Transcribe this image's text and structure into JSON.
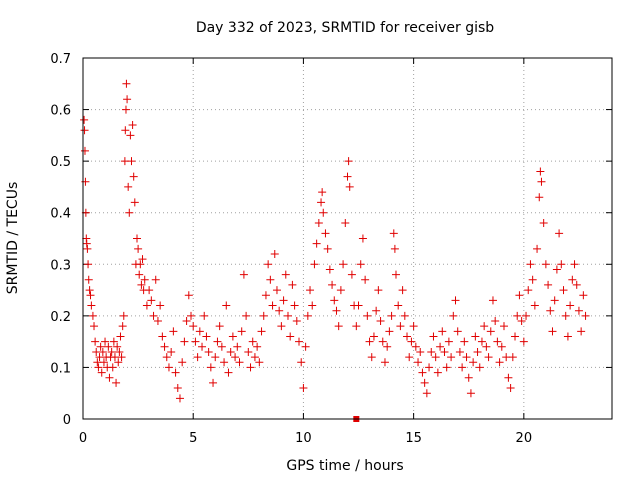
{
  "chart_data": {
    "type": "scatter",
    "title": "Day 332 of 2023, SRMTID for receiver gisb",
    "xlabel": "GPS time / hours",
    "ylabel": "SRMTID / TECUs",
    "xlim": [
      0,
      24
    ],
    "ylim": [
      0,
      0.7
    ],
    "xticks": [
      0,
      5,
      10,
      15,
      20
    ],
    "xtick_labels": [
      "0",
      "5",
      "10",
      "15",
      "20"
    ],
    "yticks": [
      0,
      0.1,
      0.2,
      0.3,
      0.4,
      0.5,
      0.6,
      0.7
    ],
    "ytick_labels": [
      "0",
      "0.1",
      "0.2",
      "0.3",
      "0.4",
      "0.5",
      "0.6",
      "0.7"
    ],
    "grid": true,
    "marker": "plus",
    "series": [
      {
        "name": "SRMTID",
        "color": "#e00000",
        "points": [
          [
            0.05,
            0.58
          ],
          [
            0.07,
            0.56
          ],
          [
            0.09,
            0.52
          ],
          [
            0.11,
            0.46
          ],
          [
            0.13,
            0.4
          ],
          [
            0.15,
            0.35
          ],
          [
            0.17,
            0.34
          ],
          [
            0.2,
            0.33
          ],
          [
            0.23,
            0.3
          ],
          [
            0.26,
            0.27
          ],
          [
            0.3,
            0.25
          ],
          [
            0.34,
            0.24
          ],
          [
            0.38,
            0.22
          ],
          [
            0.45,
            0.2
          ],
          [
            0.5,
            0.18
          ],
          [
            0.55,
            0.15
          ],
          [
            0.6,
            0.13
          ],
          [
            0.65,
            0.11
          ],
          [
            0.7,
            0.1
          ],
          [
            0.75,
            0.12
          ],
          [
            0.8,
            0.14
          ],
          [
            0.85,
            0.09
          ],
          [
            0.9,
            0.13
          ],
          [
            0.95,
            0.11
          ],
          [
            1.0,
            0.15
          ],
          [
            1.05,
            0.12
          ],
          [
            1.1,
            0.1
          ],
          [
            1.15,
            0.14
          ],
          [
            1.2,
            0.08
          ],
          [
            1.25,
            0.12
          ],
          [
            1.3,
            0.13
          ],
          [
            1.35,
            0.1
          ],
          [
            1.4,
            0.15
          ],
          [
            1.45,
            0.12
          ],
          [
            1.5,
            0.07
          ],
          [
            1.55,
            0.14
          ],
          [
            1.6,
            0.11
          ],
          [
            1.65,
            0.13
          ],
          [
            1.7,
            0.16
          ],
          [
            1.75,
            0.12
          ],
          [
            1.8,
            0.18
          ],
          [
            1.85,
            0.2
          ],
          [
            1.9,
            0.5
          ],
          [
            1.92,
            0.56
          ],
          [
            1.95,
            0.6
          ],
          [
            1.97,
            0.65
          ],
          [
            2.0,
            0.62
          ],
          [
            2.05,
            0.45
          ],
          [
            2.1,
            0.4
          ],
          [
            2.15,
            0.55
          ],
          [
            2.2,
            0.5
          ],
          [
            2.25,
            0.57
          ],
          [
            2.3,
            0.47
          ],
          [
            2.35,
            0.42
          ],
          [
            2.4,
            0.3
          ],
          [
            2.45,
            0.35
          ],
          [
            2.5,
            0.33
          ],
          [
            2.55,
            0.28
          ],
          [
            2.6,
            0.3
          ],
          [
            2.65,
            0.26
          ],
          [
            2.7,
            0.31
          ],
          [
            2.75,
            0.25
          ],
          [
            2.8,
            0.27
          ],
          [
            2.9,
            0.22
          ],
          [
            3.0,
            0.25
          ],
          [
            3.1,
            0.23
          ],
          [
            3.2,
            0.2
          ],
          [
            3.3,
            0.27
          ],
          [
            3.4,
            0.19
          ],
          [
            3.5,
            0.22
          ],
          [
            3.6,
            0.16
          ],
          [
            3.7,
            0.14
          ],
          [
            3.8,
            0.12
          ],
          [
            3.9,
            0.1
          ],
          [
            4.0,
            0.13
          ],
          [
            4.1,
            0.17
          ],
          [
            4.2,
            0.09
          ],
          [
            4.3,
            0.06
          ],
          [
            4.4,
            0.04
          ],
          [
            4.5,
            0.11
          ],
          [
            4.6,
            0.15
          ],
          [
            4.7,
            0.19
          ],
          [
            4.8,
            0.24
          ],
          [
            4.9,
            0.2
          ],
          [
            5.0,
            0.18
          ],
          [
            5.1,
            0.15
          ],
          [
            5.2,
            0.12
          ],
          [
            5.3,
            0.17
          ],
          [
            5.4,
            0.14
          ],
          [
            5.5,
            0.2
          ],
          [
            5.6,
            0.16
          ],
          [
            5.7,
            0.13
          ],
          [
            5.8,
            0.1
          ],
          [
            5.9,
            0.07
          ],
          [
            6.0,
            0.12
          ],
          [
            6.1,
            0.15
          ],
          [
            6.2,
            0.18
          ],
          [
            6.3,
            0.14
          ],
          [
            6.4,
            0.11
          ],
          [
            6.5,
            0.22
          ],
          [
            6.6,
            0.09
          ],
          [
            6.7,
            0.13
          ],
          [
            6.8,
            0.16
          ],
          [
            6.9,
            0.12
          ],
          [
            7.0,
            0.14
          ],
          [
            7.1,
            0.11
          ],
          [
            7.2,
            0.17
          ],
          [
            7.3,
            0.28
          ],
          [
            7.4,
            0.2
          ],
          [
            7.5,
            0.13
          ],
          [
            7.6,
            0.1
          ],
          [
            7.7,
            0.15
          ],
          [
            7.8,
            0.12
          ],
          [
            7.9,
            0.14
          ],
          [
            8.0,
            0.11
          ],
          [
            8.1,
            0.17
          ],
          [
            8.2,
            0.2
          ],
          [
            8.3,
            0.24
          ],
          [
            8.4,
            0.3
          ],
          [
            8.5,
            0.27
          ],
          [
            8.6,
            0.22
          ],
          [
            8.7,
            0.32
          ],
          [
            8.8,
            0.25
          ],
          [
            8.9,
            0.21
          ],
          [
            9.0,
            0.18
          ],
          [
            9.1,
            0.23
          ],
          [
            9.2,
            0.28
          ],
          [
            9.3,
            0.2
          ],
          [
            9.4,
            0.16
          ],
          [
            9.5,
            0.26
          ],
          [
            9.6,
            0.22
          ],
          [
            9.7,
            0.19
          ],
          [
            9.8,
            0.15
          ],
          [
            9.9,
            0.11
          ],
          [
            10.0,
            0.06
          ],
          [
            10.1,
            0.14
          ],
          [
            10.2,
            0.2
          ],
          [
            10.3,
            0.25
          ],
          [
            10.4,
            0.22
          ],
          [
            10.5,
            0.3
          ],
          [
            10.6,
            0.34
          ],
          [
            10.7,
            0.38
          ],
          [
            10.8,
            0.42
          ],
          [
            10.85,
            0.44
          ],
          [
            10.9,
            0.4
          ],
          [
            11.0,
            0.36
          ],
          [
            11.1,
            0.33
          ],
          [
            11.2,
            0.29
          ],
          [
            11.3,
            0.26
          ],
          [
            11.4,
            0.23
          ],
          [
            11.5,
            0.21
          ],
          [
            11.6,
            0.18
          ],
          [
            11.7,
            0.25
          ],
          [
            11.8,
            0.3
          ],
          [
            11.9,
            0.38
          ],
          [
            12.0,
            0.47
          ],
          [
            12.05,
            0.5
          ],
          [
            12.1,
            0.45
          ],
          [
            12.2,
            0.28
          ],
          [
            12.3,
            0.22
          ],
          [
            12.4,
            0.18
          ],
          [
            12.5,
            0.22
          ],
          [
            12.6,
            0.3
          ],
          [
            12.7,
            0.35
          ],
          [
            12.8,
            0.27
          ],
          [
            12.9,
            0.2
          ],
          [
            13.0,
            0.15
          ],
          [
            13.1,
            0.12
          ],
          [
            13.2,
            0.16
          ],
          [
            13.3,
            0.21
          ],
          [
            13.4,
            0.25
          ],
          [
            13.5,
            0.19
          ],
          [
            13.6,
            0.15
          ],
          [
            13.7,
            0.11
          ],
          [
            13.8,
            0.14
          ],
          [
            13.9,
            0.17
          ],
          [
            14.0,
            0.2
          ],
          [
            14.1,
            0.36
          ],
          [
            14.15,
            0.33
          ],
          [
            14.2,
            0.28
          ],
          [
            14.3,
            0.22
          ],
          [
            14.4,
            0.18
          ],
          [
            14.5,
            0.25
          ],
          [
            14.6,
            0.2
          ],
          [
            14.7,
            0.16
          ],
          [
            14.8,
            0.12
          ],
          [
            14.9,
            0.15
          ],
          [
            15.0,
            0.18
          ],
          [
            15.1,
            0.14
          ],
          [
            15.2,
            0.11
          ],
          [
            15.3,
            0.13
          ],
          [
            15.4,
            0.09
          ],
          [
            15.5,
            0.07
          ],
          [
            15.6,
            0.05
          ],
          [
            15.7,
            0.1
          ],
          [
            15.8,
            0.13
          ],
          [
            15.9,
            0.16
          ],
          [
            16.0,
            0.12
          ],
          [
            16.1,
            0.09
          ],
          [
            16.2,
            0.14
          ],
          [
            16.3,
            0.17
          ],
          [
            16.4,
            0.13
          ],
          [
            16.5,
            0.1
          ],
          [
            16.6,
            0.15
          ],
          [
            16.7,
            0.12
          ],
          [
            16.8,
            0.2
          ],
          [
            16.9,
            0.23
          ],
          [
            17.0,
            0.17
          ],
          [
            17.1,
            0.13
          ],
          [
            17.2,
            0.1
          ],
          [
            17.3,
            0.15
          ],
          [
            17.4,
            0.12
          ],
          [
            17.5,
            0.08
          ],
          [
            17.6,
            0.05
          ],
          [
            17.7,
            0.11
          ],
          [
            17.8,
            0.16
          ],
          [
            17.9,
            0.13
          ],
          [
            18.0,
            0.1
          ],
          [
            18.1,
            0.15
          ],
          [
            18.2,
            0.18
          ],
          [
            18.3,
            0.14
          ],
          [
            18.4,
            0.12
          ],
          [
            18.5,
            0.17
          ],
          [
            18.6,
            0.23
          ],
          [
            18.7,
            0.19
          ],
          [
            18.8,
            0.15
          ],
          [
            18.9,
            0.11
          ],
          [
            19.0,
            0.14
          ],
          [
            19.1,
            0.18
          ],
          [
            19.2,
            0.12
          ],
          [
            19.3,
            0.08
          ],
          [
            19.4,
            0.06
          ],
          [
            19.5,
            0.12
          ],
          [
            19.6,
            0.16
          ],
          [
            19.7,
            0.2
          ],
          [
            19.8,
            0.24
          ],
          [
            19.9,
            0.19
          ],
          [
            20.0,
            0.15
          ],
          [
            20.1,
            0.2
          ],
          [
            20.2,
            0.25
          ],
          [
            20.3,
            0.3
          ],
          [
            20.4,
            0.27
          ],
          [
            20.5,
            0.22
          ],
          [
            20.6,
            0.33
          ],
          [
            20.7,
            0.43
          ],
          [
            20.75,
            0.48
          ],
          [
            20.8,
            0.46
          ],
          [
            20.9,
            0.38
          ],
          [
            21.0,
            0.3
          ],
          [
            21.1,
            0.26
          ],
          [
            21.2,
            0.21
          ],
          [
            21.3,
            0.17
          ],
          [
            21.4,
            0.23
          ],
          [
            21.5,
            0.29
          ],
          [
            21.6,
            0.36
          ],
          [
            21.7,
            0.3
          ],
          [
            21.8,
            0.25
          ],
          [
            21.9,
            0.2
          ],
          [
            22.0,
            0.16
          ],
          [
            22.1,
            0.22
          ],
          [
            22.2,
            0.27
          ],
          [
            22.3,
            0.3
          ],
          [
            22.4,
            0.26
          ],
          [
            22.5,
            0.21
          ],
          [
            22.6,
            0.17
          ],
          [
            22.7,
            0.24
          ],
          [
            22.8,
            0.2
          ]
        ]
      }
    ],
    "outlier": {
      "x": 12.4,
      "y": 0.0,
      "marker": "square"
    }
  }
}
